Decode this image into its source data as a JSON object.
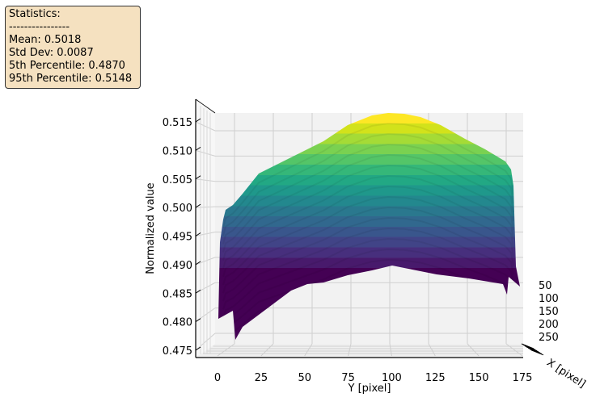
{
  "stats_box": {
    "title": "Statistics:",
    "divider": "----------------",
    "lines": [
      "Mean: 0.5018",
      "Std Dev: 0.0087",
      "5th Percentile: 0.4870",
      "95th Percentile: 0.5148"
    ]
  },
  "chart_data": {
    "type": "surface",
    "colormap": "viridis",
    "xlabel": "Y [pixel]",
    "ylabel": "X [pixel]",
    "zlabel": "Normalized value",
    "x_ticks": [
      0,
      25,
      50,
      75,
      100,
      125,
      150,
      175
    ],
    "y_ticks": [
      50,
      100,
      150,
      200,
      250
    ],
    "z_ticks": [
      "0.475",
      "0.480",
      "0.485",
      "0.490",
      "0.495",
      "0.500",
      "0.505",
      "0.510",
      "0.515"
    ],
    "zlim": [
      0.475,
      0.516
    ],
    "grid": true,
    "view": "front, looking along X [pixel] axis",
    "surface_profile": {
      "x": [
        0,
        25,
        50,
        75,
        100,
        125,
        150,
        175
      ],
      "top_z": [
        0.497,
        0.5035,
        0.507,
        0.512,
        0.5155,
        0.514,
        0.5105,
        0.5075
      ],
      "bottom_z": [
        0.479,
        0.48,
        0.484,
        0.4865,
        0.488,
        0.4875,
        0.4865,
        0.4855
      ]
    }
  }
}
